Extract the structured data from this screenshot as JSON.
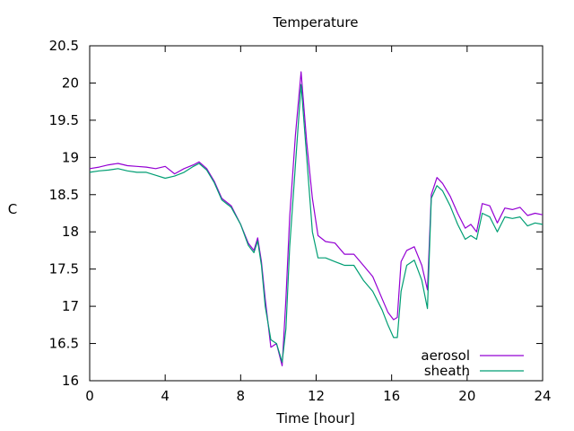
{
  "chart_data": {
    "type": "line",
    "title": "Temperature",
    "xlabel": "Time [hour]",
    "ylabel": "C",
    "xlim": [
      0,
      24
    ],
    "ylim": [
      16,
      20.5
    ],
    "xticks": [
      0,
      4,
      8,
      12,
      16,
      20,
      24
    ],
    "yticks": [
      16,
      16.5,
      17,
      17.5,
      18,
      18.5,
      19,
      19.5,
      20,
      20.5
    ],
    "xtick_labels": [
      "0",
      "4",
      "8",
      "12",
      "16",
      "20",
      "24"
    ],
    "ytick_labels": [
      "16",
      "16.5",
      "17",
      "17.5",
      "18",
      "18.5",
      "19",
      "19.5",
      "20",
      "20.5"
    ],
    "grid": false,
    "legend_position": "bottom-right",
    "series": [
      {
        "name": "aerosol",
        "color": "#9400d3",
        "x": [
          0,
          0.5,
          1,
          1.5,
          2,
          2.5,
          3,
          3.5,
          4,
          4.5,
          5,
          5.5,
          5.8,
          6.2,
          6.6,
          7,
          7.5,
          8,
          8.4,
          8.7,
          8.9,
          9.1,
          9.3,
          9.6,
          9.9,
          10.2,
          10.4,
          10.6,
          10.9,
          11.2,
          11.5,
          11.8,
          12.1,
          12.5,
          13,
          13.5,
          14,
          14.5,
          15,
          15.5,
          15.8,
          16.1,
          16.3,
          16.5,
          16.8,
          17.2,
          17.6,
          17.9,
          18.1,
          18.4,
          18.7,
          19.1,
          19.5,
          19.9,
          20.2,
          20.5,
          20.8,
          21.2,
          21.6,
          22,
          22.4,
          22.8,
          23.2,
          23.6,
          24
        ],
        "y": [
          18.85,
          18.87,
          18.9,
          18.92,
          18.89,
          18.88,
          18.87,
          18.85,
          18.88,
          18.78,
          18.85,
          18.9,
          18.94,
          18.85,
          18.68,
          18.45,
          18.35,
          18.1,
          17.85,
          17.75,
          17.92,
          17.6,
          17.1,
          16.45,
          16.5,
          16.2,
          17.1,
          18.2,
          19.3,
          20.15,
          19.2,
          18.45,
          17.95,
          17.87,
          17.85,
          17.7,
          17.7,
          17.55,
          17.4,
          17.1,
          16.92,
          16.82,
          16.85,
          17.6,
          17.75,
          17.8,
          17.55,
          17.22,
          18.5,
          18.73,
          18.65,
          18.48,
          18.25,
          18.05,
          18.1,
          18.0,
          18.38,
          18.35,
          18.12,
          18.32,
          18.3,
          18.33,
          18.22,
          18.25,
          18.23
        ]
      },
      {
        "name": "sheath",
        "color": "#009e73",
        "x": [
          0,
          0.5,
          1,
          1.5,
          2,
          2.5,
          3,
          3.5,
          4,
          4.5,
          5,
          5.5,
          5.8,
          6.2,
          6.6,
          7,
          7.5,
          8,
          8.4,
          8.7,
          8.9,
          9.1,
          9.3,
          9.6,
          9.9,
          10.2,
          10.4,
          10.6,
          10.9,
          11.2,
          11.5,
          11.8,
          12.1,
          12.5,
          13,
          13.5,
          14,
          14.5,
          15,
          15.5,
          15.8,
          16.1,
          16.3,
          16.5,
          16.8,
          17.2,
          17.6,
          17.9,
          18.1,
          18.4,
          18.7,
          19.1,
          19.5,
          19.9,
          20.2,
          20.5,
          20.8,
          21.2,
          21.6,
          22,
          22.4,
          22.8,
          23.2,
          23.6,
          24
        ],
        "y": [
          18.8,
          18.82,
          18.83,
          18.85,
          18.82,
          18.8,
          18.8,
          18.76,
          18.72,
          18.75,
          18.8,
          18.88,
          18.92,
          18.83,
          18.66,
          18.43,
          18.33,
          18.1,
          17.82,
          17.72,
          17.88,
          17.55,
          17.0,
          16.55,
          16.5,
          16.25,
          16.7,
          17.8,
          18.9,
          19.98,
          19.0,
          18.0,
          17.65,
          17.65,
          17.6,
          17.55,
          17.55,
          17.35,
          17.2,
          16.95,
          16.75,
          16.58,
          16.58,
          17.2,
          17.55,
          17.62,
          17.35,
          16.97,
          18.45,
          18.62,
          18.55,
          18.35,
          18.1,
          17.9,
          17.95,
          17.9,
          18.25,
          18.2,
          18.0,
          18.2,
          18.18,
          18.2,
          18.08,
          18.12,
          18.1
        ]
      }
    ]
  }
}
